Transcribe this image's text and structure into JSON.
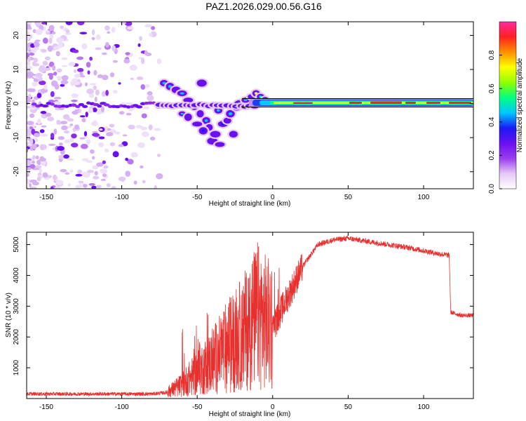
{
  "title": "PAZ1.2026.029.00.56.G16",
  "colors": {
    "snr_line": "#e8312f",
    "frame": "#000000"
  },
  "chart_data": [
    {
      "type": "heatmap",
      "name": "spectrogram",
      "xlabel": "Height of straight line (km)",
      "ylabel": "Frequency (Hz)",
      "xlim": [
        -163,
        133
      ],
      "ylim": [
        -25,
        24
      ],
      "xticks": [
        -150,
        -100,
        -50,
        0,
        50,
        100
      ],
      "xtick_labels": [
        "-150",
        "-100",
        "-50",
        "0",
        "50",
        "100"
      ],
      "yticks": [
        -20,
        -10,
        0,
        10,
        20
      ],
      "ytick_labels": [
        "-20",
        "-10",
        "0",
        "10",
        "20"
      ],
      "colorbar": {
        "label": "Normalized spectral amplitude",
        "range": [
          0,
          1
        ],
        "ticks": [
          0.0,
          0.2,
          0.4,
          0.6,
          0.8
        ],
        "tick_labels": [
          "0.0",
          "0.2",
          "0.4",
          "0.6",
          "0.8"
        ],
        "colormap": [
          "#ffffff",
          "#e6c8f5",
          "#9a3df0",
          "#6a0ff0",
          "#1a1af5",
          "#00c8ff",
          "#00ff80",
          "#90ff00",
          "#ffff00",
          "#ff9000",
          "#ff2020",
          "#ff2aa0"
        ]
      },
      "features": {
        "noise_region_km": [
          -163,
          -75
        ],
        "carrier_frequency_hz": 0,
        "carrier_strong_from_km": -10,
        "scatter_region_km": [
          -75,
          -15
        ],
        "scatter_frequency_range_hz": [
          -13,
          7
        ]
      }
    },
    {
      "type": "line",
      "name": "snr",
      "xlabel": "Height of straight line (km)",
      "ylabel": "SNR (10 * v/v)",
      "xlim": [
        -163,
        133
      ],
      "ylim": [
        0,
        5400
      ],
      "xticks": [
        -150,
        -100,
        -50,
        0,
        50,
        100
      ],
      "xtick_labels": [
        "-150",
        "-100",
        "-50",
        "0",
        "50",
        "100"
      ],
      "yticks": [
        1000,
        2000,
        3000,
        4000,
        5000
      ],
      "ytick_labels": [
        "1000",
        "2000",
        "3000",
        "4000",
        "5000"
      ],
      "profile": {
        "x": [
          -163,
          -100,
          -80,
          -70,
          -60,
          -50,
          -40,
          -30,
          -20,
          -10,
          0,
          10,
          20,
          30,
          40,
          50,
          70,
          90,
          110,
          117,
          118,
          125,
          133
        ],
        "y": [
          150,
          150,
          150,
          200,
          450,
          850,
          1200,
          1700,
          2100,
          2700,
          2300,
          3300,
          4300,
          5000,
          5150,
          5200,
          5050,
          4900,
          4700,
          4650,
          2800,
          2700,
          2700
        ]
      }
    }
  ]
}
